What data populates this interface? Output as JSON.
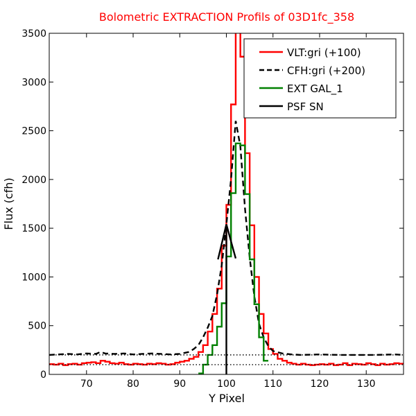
{
  "chart_data": {
    "type": "line",
    "title": "Bolometric EXTRACTION Profils of 03D1fc_358",
    "title_color": "#ff0000",
    "xlabel": "Y Pixel",
    "ylabel": "Flux (cfh)",
    "xlim": [
      62,
      138
    ],
    "ylim": [
      0,
      3500
    ],
    "xticks": [
      70,
      80,
      90,
      100,
      110,
      120,
      130
    ],
    "yticks": [
      0,
      500,
      1000,
      1500,
      2000,
      2500,
      3000,
      3500
    ],
    "xtick_labels": [
      "70",
      "80",
      "90",
      "100",
      "110",
      "120",
      "130"
    ],
    "ytick_labels": [
      "0",
      "500",
      "1000",
      "1500",
      "2000",
      "2500",
      "3000",
      "3500"
    ],
    "grid": false,
    "legend_position": "top-right",
    "series": [
      {
        "name": "VLT:gri (+100)",
        "color": "#ff0000",
        "style": "steps",
        "x": [
          62,
          63,
          64,
          65,
          66,
          67,
          68,
          69,
          70,
          71,
          72,
          73,
          74,
          75,
          76,
          77,
          78,
          79,
          80,
          81,
          82,
          83,
          84,
          85,
          86,
          87,
          88,
          89,
          90,
          91,
          92,
          93,
          94,
          95,
          96,
          97,
          98,
          99,
          100,
          101,
          102,
          103,
          104,
          105,
          106,
          107,
          108,
          109,
          110,
          111,
          112,
          113,
          114,
          115,
          116,
          117,
          118,
          119,
          120,
          121,
          122,
          123,
          124,
          125,
          126,
          127,
          128,
          129,
          130,
          131,
          132,
          133,
          134,
          135,
          136,
          137
        ],
        "values": [
          105,
          100,
          110,
          95,
          105,
          110,
          100,
          115,
          120,
          125,
          115,
          140,
          130,
          115,
          110,
          120,
          105,
          100,
          110,
          105,
          100,
          110,
          105,
          115,
          110,
          100,
          105,
          120,
          130,
          140,
          160,
          180,
          230,
          300,
          440,
          620,
          880,
          1320,
          1740,
          2770,
          3520,
          3260,
          2270,
          1530,
          1000,
          620,
          420,
          260,
          210,
          160,
          140,
          120,
          110,
          100,
          110,
          100,
          95,
          100,
          105,
          100,
          110,
          95,
          100,
          115,
          95,
          110,
          105,
          100,
          115,
          105,
          95,
          110,
          100,
          105,
          115,
          110
        ]
      },
      {
        "name": "CFH:gri (+200)",
        "color": "#000000",
        "style": "dashed",
        "x": [
          62,
          64,
          66,
          68,
          70,
          72,
          73,
          74,
          76,
          78,
          80,
          82,
          84,
          86,
          88,
          90,
          92,
          93,
          94,
          95,
          96,
          97,
          98,
          99,
          100,
          101,
          102,
          103,
          104,
          105,
          106,
          107,
          108,
          109,
          110,
          112,
          114,
          116,
          120,
          124,
          128,
          132,
          136,
          138
        ],
        "values": [
          200,
          205,
          210,
          205,
          215,
          210,
          230,
          215,
          210,
          215,
          205,
          210,
          215,
          210,
          205,
          210,
          230,
          260,
          300,
          380,
          480,
          600,
          820,
          1120,
          1540,
          2000,
          2600,
          2340,
          1700,
          1200,
          800,
          520,
          380,
          290,
          240,
          215,
          205,
          200,
          205,
          200,
          200,
          200,
          205,
          200
        ]
      },
      {
        "name": "EXT GAL_1",
        "color": "#008000",
        "style": "steps",
        "x": [
          94,
          95,
          96,
          97,
          98,
          99,
          100,
          101,
          102,
          103,
          104,
          105,
          106,
          107,
          108
        ],
        "values": [
          10,
          100,
          200,
          300,
          490,
          730,
          1210,
          1860,
          2370,
          2350,
          1850,
          1180,
          720,
          380,
          140
        ]
      },
      {
        "name": "PSF SN",
        "color": "#000000",
        "style": "solid",
        "x": [
          98.2,
          100,
          102
        ],
        "values": [
          1180,
          1540,
          1190
        ]
      }
    ],
    "reference_lines": [
      {
        "style": "dotted",
        "y": 100,
        "color": "#000000"
      },
      {
        "style": "dotted",
        "y": 200,
        "color": "#000000"
      },
      {
        "style": "solid",
        "x": 100,
        "y_range": [
          0,
          1540
        ],
        "color": "#000000"
      }
    ]
  }
}
